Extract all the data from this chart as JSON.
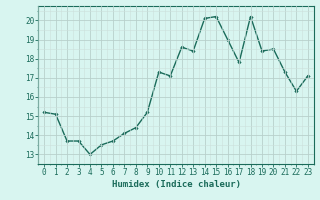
{
  "x": [
    0,
    1,
    2,
    3,
    4,
    5,
    6,
    7,
    8,
    9,
    10,
    11,
    12,
    13,
    14,
    15,
    16,
    17,
    18,
    19,
    20,
    21,
    22,
    23
  ],
  "y": [
    15.2,
    15.1,
    13.7,
    13.7,
    13.0,
    13.5,
    13.7,
    14.1,
    14.4,
    15.2,
    17.3,
    17.1,
    18.6,
    18.4,
    20.1,
    20.2,
    19.0,
    17.8,
    20.2,
    18.4,
    18.5,
    17.3,
    16.3,
    17.1
  ],
  "line_color": "#1a6b5a",
  "marker": "D",
  "marker_size": 1.8,
  "line_width": 1.0,
  "bg_color": "#d8f5f0",
  "grid_color_major": "#b8d0cc",
  "grid_color_minor": "#cce0dc",
  "xlabel": "Humidex (Indice chaleur)",
  "ylim": [
    12.5,
    20.75
  ],
  "xlim": [
    -0.5,
    23.5
  ],
  "yticks": [
    13,
    14,
    15,
    16,
    17,
    18,
    19,
    20
  ],
  "xticks": [
    0,
    1,
    2,
    3,
    4,
    5,
    6,
    7,
    8,
    9,
    10,
    11,
    12,
    13,
    14,
    15,
    16,
    17,
    18,
    19,
    20,
    21,
    22,
    23
  ],
  "tick_color": "#1a6b5a",
  "xlabel_fontsize": 6.5,
  "tick_fontsize": 5.5,
  "axis_color": "#1a6b5a"
}
